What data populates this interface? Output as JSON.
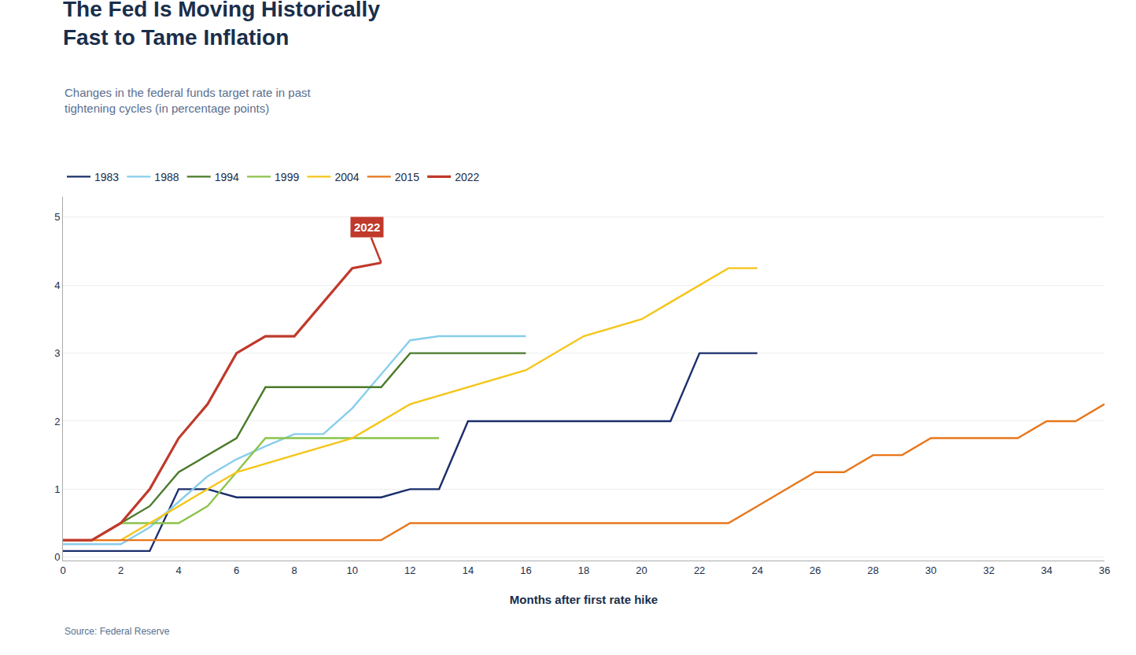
{
  "chart_data": {
    "type": "line",
    "title": "The Fed Is Moving Historically\nFast to Tame Inflation",
    "subtitle": "Changes in the federal funds target rate in past\ntightening cycles (in percentage points)",
    "source": "Source: Federal Reserve",
    "xlabel": "Months after first rate hike",
    "series": [
      {
        "name": "1983",
        "color": "#1a2e6b",
        "x": [
          0,
          3,
          4,
          5,
          6,
          7,
          8,
          9,
          10,
          11,
          12,
          13,
          14,
          17,
          18,
          21,
          22,
          24
        ],
        "values": [
          0.09,
          0.09,
          1.0,
          1.0,
          0.88,
          0.88,
          0.88,
          0.88,
          0.88,
          0.88,
          1.0,
          1.0,
          2.0,
          2.0,
          2.0,
          2.0,
          3.0,
          3.0
        ]
      },
      {
        "name": "1988",
        "color": "#87CEEB",
        "x": [
          0,
          1,
          2,
          3,
          4,
          5,
          6,
          7,
          8,
          9,
          10,
          11,
          12,
          13,
          14,
          15,
          16
        ],
        "values": [
          0.19,
          0.19,
          0.19,
          0.44,
          0.81,
          1.19,
          1.44,
          1.63,
          1.81,
          1.81,
          2.19,
          2.69,
          3.19,
          3.25,
          3.25,
          3.25,
          3.25
        ]
      },
      {
        "name": "1994",
        "color": "#4a7a2a",
        "x": [
          0,
          1,
          2,
          3,
          4,
          5,
          6,
          7,
          8,
          9,
          10,
          11,
          12,
          13,
          14,
          15,
          16
        ],
        "values": [
          0.25,
          0.25,
          0.5,
          0.75,
          1.25,
          1.5,
          1.75,
          2.5,
          2.5,
          2.5,
          2.5,
          2.5,
          3.0,
          3.0,
          3.0,
          3.0,
          3.0
        ]
      },
      {
        "name": "1999",
        "color": "#8bc34a",
        "x": [
          0,
          1,
          2,
          3,
          4,
          5,
          6,
          7,
          8,
          9,
          10,
          11,
          12,
          13
        ],
        "values": [
          0.25,
          0.25,
          0.5,
          0.5,
          0.5,
          0.75,
          1.25,
          1.75,
          1.75,
          1.75,
          1.75,
          1.75,
          1.75,
          1.75
        ]
      },
      {
        "name": "2004",
        "color": "#f5c518",
        "x": [
          0,
          2,
          4,
          6,
          8,
          10,
          12,
          14,
          16,
          18,
          20,
          21,
          22,
          23,
          24
        ],
        "values": [
          0.25,
          0.25,
          0.75,
          1.25,
          1.5,
          1.75,
          2.25,
          2.5,
          2.75,
          3.25,
          3.5,
          3.75,
          4.0,
          4.25,
          4.25
        ]
      },
      {
        "name": "2015",
        "color": "#e8761a",
        "x": [
          0,
          1,
          2,
          3,
          4,
          5,
          6,
          7,
          8,
          9,
          10,
          11,
          12,
          13,
          14,
          15,
          16,
          17,
          18,
          19,
          20,
          21,
          22,
          23,
          24,
          25,
          26,
          27,
          28,
          29,
          30,
          31,
          32,
          33,
          34,
          35,
          36
        ],
        "values": [
          0.25,
          0.25,
          0.25,
          0.25,
          0.25,
          0.25,
          0.25,
          0.25,
          0.25,
          0.25,
          0.25,
          0.25,
          0.5,
          0.5,
          0.5,
          0.5,
          0.5,
          0.5,
          0.5,
          0.5,
          0.5,
          0.5,
          0.5,
          0.5,
          0.75,
          1.0,
          1.25,
          1.25,
          1.5,
          1.5,
          1.75,
          1.75,
          1.75,
          1.75,
          2.0,
          2.0,
          2.25
        ]
      },
      {
        "name": "2022",
        "color": "#c0392b",
        "x": [
          0,
          1,
          2,
          3,
          4,
          5,
          6,
          7,
          8,
          9,
          10,
          11
        ],
        "values": [
          0.25,
          0.25,
          0.5,
          1.0,
          1.75,
          2.25,
          3.0,
          3.25,
          3.25,
          3.75,
          4.25,
          4.33
        ]
      }
    ],
    "annotations": [
      {
        "text": "2022",
        "x": 11,
        "y": 4.33,
        "color": "#c0392b"
      }
    ],
    "xlim": [
      0,
      36
    ],
    "ylim": [
      -0.05,
      5.3
    ],
    "xticks": [
      0,
      2,
      4,
      6,
      8,
      10,
      12,
      14,
      16,
      18,
      20,
      22,
      24,
      26,
      28,
      30,
      32,
      34,
      36
    ],
    "yticks": [
      0,
      1,
      2,
      3,
      4,
      5
    ],
    "grid": "y",
    "legend": "top"
  }
}
